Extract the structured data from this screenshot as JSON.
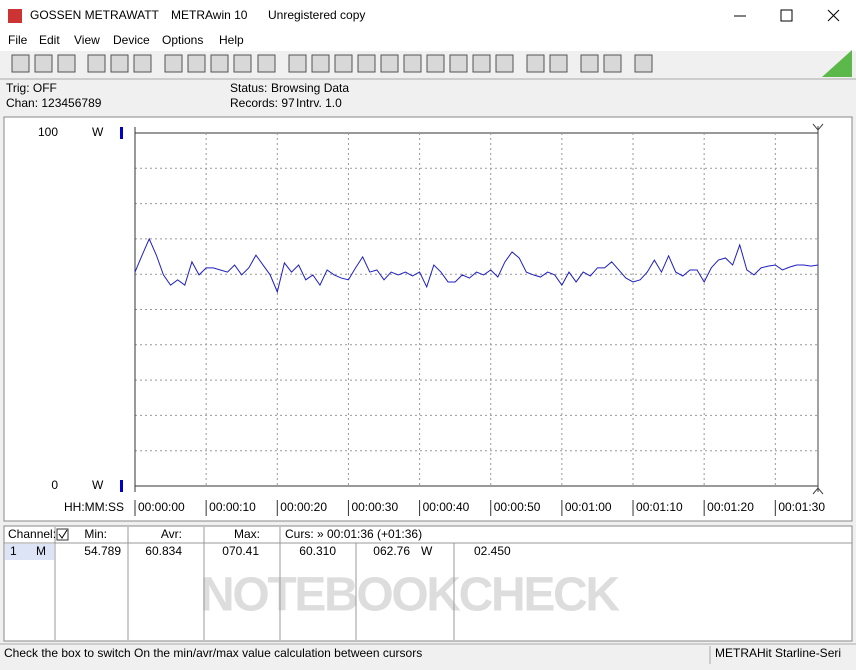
{
  "window": {
    "app": "GOSSEN METRAWATT",
    "product": "METRAwin 10",
    "license": "Unregistered copy"
  },
  "menu": [
    "File",
    "Edit",
    "View",
    "Device",
    "Options",
    "Help"
  ],
  "info": {
    "trig": "Trig: OFF",
    "chan": "Chan:  123456789",
    "status_label": "Status:",
    "status": "Browsing Data",
    "records": "Records: 97",
    "interval": "Intrv. 1.0"
  },
  "chart_data": {
    "type": "line",
    "x_label": "HH:MM:SS",
    "y_unit": "W",
    "color": "#1f1fbf",
    "x": [
      0,
      1,
      2,
      3,
      4,
      5,
      6,
      7,
      8,
      9,
      10,
      11,
      12,
      13,
      14,
      15,
      16,
      17,
      18,
      19,
      20,
      21,
      22,
      23,
      24,
      25,
      26,
      27,
      28,
      29,
      30,
      31,
      32,
      33,
      34,
      35,
      36,
      37,
      38,
      39,
      40,
      41,
      42,
      43,
      44,
      45,
      46,
      47,
      48,
      49,
      50,
      51,
      52,
      53,
      54,
      55,
      56,
      57,
      58,
      59,
      60,
      61,
      62,
      63,
      64,
      65,
      66,
      67,
      68,
      69,
      70,
      71,
      72,
      73,
      74,
      75,
      76,
      77,
      78,
      79,
      80,
      81,
      82,
      83,
      84,
      85,
      86,
      87,
      88,
      89,
      90,
      91,
      92,
      93,
      94,
      95,
      96
    ],
    "values": [
      60.6,
      65.4,
      70.0,
      65.4,
      59.8,
      56.9,
      58.4,
      56.9,
      63.5,
      59.8,
      61.8,
      61.8,
      61.2,
      60.6,
      62.6,
      59.8,
      61.8,
      65.4,
      62.6,
      59.8,
      55.0,
      63.2,
      60.6,
      62.6,
      58.4,
      59.8,
      56.9,
      61.2,
      59.8,
      58.9,
      58.4,
      61.8,
      64.9,
      60.6,
      61.2,
      58.4,
      60.6,
      59.8,
      60.6,
      59.5,
      60.6,
      56.4,
      62.6,
      60.6,
      57.8,
      57.8,
      59.8,
      58.9,
      60.6,
      59.8,
      61.2,
      59.2,
      63.5,
      66.3,
      64.6,
      60.6,
      59.8,
      59.2,
      60.6,
      59.8,
      56.9,
      60.6,
      57.8,
      60.6,
      59.5,
      61.8,
      61.8,
      63.5,
      61.2,
      58.9,
      57.8,
      58.4,
      60.6,
      64.0,
      60.6,
      65.2,
      60.6,
      59.5,
      61.2,
      61.2,
      57.8,
      61.8,
      64.0,
      64.6,
      62.6,
      68.3,
      61.2,
      59.8,
      61.8,
      62.3,
      62.6,
      61.2,
      62.0,
      62.6,
      62.6,
      62.3,
      62.6
    ],
    "xlim": [
      0,
      96
    ],
    "xticks": [
      {
        "value": 0,
        "label": "00:00:00"
      },
      {
        "value": 10,
        "label": "00:00:10"
      },
      {
        "value": 20,
        "label": "00:00:20"
      },
      {
        "value": 30,
        "label": "00:00:30"
      },
      {
        "value": 40,
        "label": "00:00:40"
      },
      {
        "value": 50,
        "label": "00:00:50"
      },
      {
        "value": 60,
        "label": "00:01:00"
      },
      {
        "value": 70,
        "label": "00:01:10"
      },
      {
        "value": 80,
        "label": "00:01:20"
      },
      {
        "value": 90,
        "label": "00:01:30"
      }
    ],
    "ylim": [
      0,
      100
    ],
    "yticks": [
      0,
      100
    ],
    "ygrid": [
      10,
      20,
      30,
      40,
      50,
      60,
      70,
      80,
      90
    ]
  },
  "table": {
    "header": [
      "Channel:",
      "Min:",
      "Avr:",
      "Max:",
      "Curs: » 00:01:36 (+01:36)"
    ],
    "row": [
      "1",
      "M",
      "54.789",
      "60.834",
      "070.41",
      "60.310",
      "062.76",
      "W",
      "02.450"
    ]
  },
  "watermark": "NOTEBOOKCHECK",
  "statusbar": {
    "hint": "Check the box to switch On the min/avr/max value calculation between cursors",
    "device": "METRAHit Starline-Seri"
  }
}
